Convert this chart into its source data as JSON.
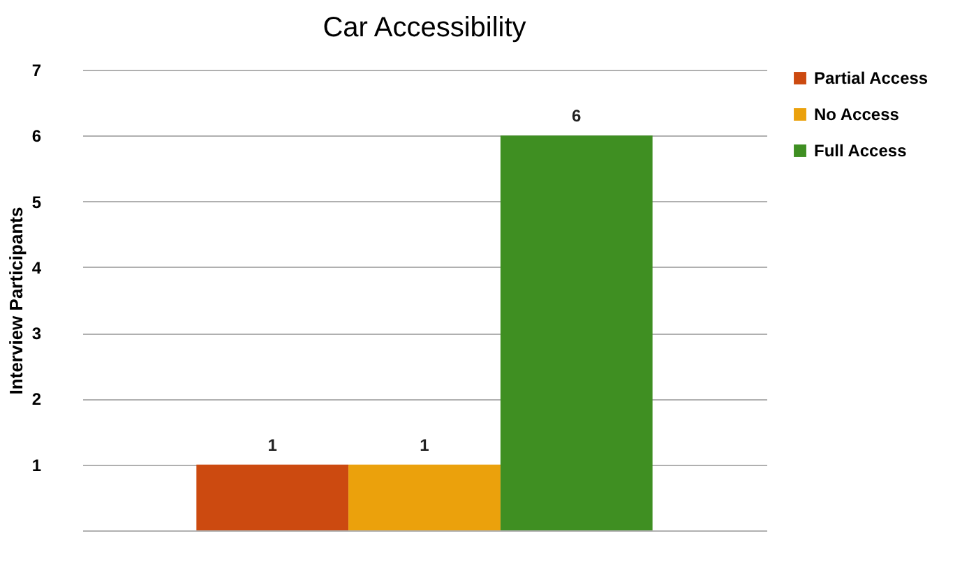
{
  "chart_data": {
    "type": "bar",
    "title": "Car Accessibility",
    "ylabel": "Interview Participants",
    "categories": [
      null
    ],
    "series": [
      {
        "name": "Partial Access",
        "color": "#cc4a10",
        "values": [
          1
        ]
      },
      {
        "name": "No Access",
        "color": "#eba10c",
        "values": [
          1
        ]
      },
      {
        "name": "Full Access",
        "color": "#3f8f22",
        "values": [
          6
        ]
      }
    ],
    "ylim": [
      0,
      7
    ],
    "yticks": [
      1,
      2,
      3,
      4,
      5,
      6,
      7
    ],
    "grid": "y",
    "legend": "right",
    "data_labels": true,
    "tick_labels": "y"
  }
}
